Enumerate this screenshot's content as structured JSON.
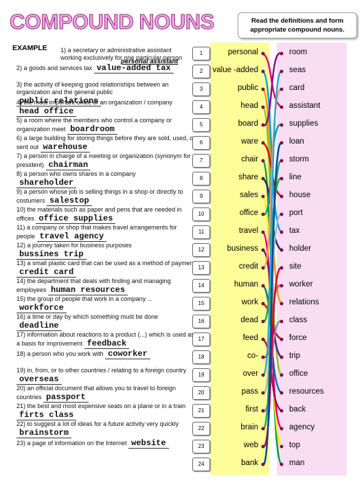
{
  "header": {
    "title": "COMPOUND NOUNS",
    "instruction": "Read the definitions and form appropriate compound nouns.",
    "example_label": "EXAMPLE"
  },
  "definitions": [
    {
      "number": "1)",
      "text": "a secretary or administrative assistant working exclusively for one particular person",
      "answer": "personal assistant"
    },
    {
      "number": "2)",
      "text": "a goods and services tax",
      "answer": "value-added tax"
    },
    {
      "number": "3)",
      "text": "the activity of keeping good relationships between an organization and the general public",
      "answer": "public relations"
    },
    {
      "number": "4)",
      "text": "the most important office of an organization / company",
      "answer": "head office"
    },
    {
      "number": "5)",
      "text": "a room where the members who control a company or organization meet",
      "answer": "boardroom"
    },
    {
      "number": "6)",
      "text": "a large building for storing things before they are sold, used, or sent out",
      "answer": "warehouse"
    },
    {
      "number": "7)",
      "text": "a person in charge of a meeting or organization (synonym for president)",
      "answer": "chairman"
    },
    {
      "number": "8)",
      "text": "a person who owns shares in a company",
      "answer": "shareholder"
    },
    {
      "number": "9)",
      "text": "a person whose job is selling things in a shop or directly to costumers",
      "answer": "salestop"
    },
    {
      "number": "10)",
      "text": "the materials such as paper and pens that are needed in offices",
      "answer": "office supplies"
    },
    {
      "number": "11)",
      "text": "a company or shop that makes travel arrangements for people",
      "answer": "travel agency"
    },
    {
      "number": "12)",
      "text": "a journey taken for business purposes",
      "answer": "bussines trip"
    },
    {
      "number": "13)",
      "text": "a small plastic card that can be used as a method of payment",
      "answer": "credit card"
    },
    {
      "number": "14)",
      "text": "the department that deals with finding and managing employees",
      "answer": "human resources"
    },
    {
      "number": "15)",
      "text": "the group of people that work in a company ...",
      "answer": "workforce"
    },
    {
      "number": "16)",
      "text": "a time or day by which something must be done",
      "answer": "deadline"
    },
    {
      "number": "17)",
      "text": "information about reactions to a product (...) which is used as a basis for improvement",
      "answer": "feedback"
    },
    {
      "number": "18)",
      "text": "a person who you work with",
      "answer": "coworker"
    },
    {
      "number": "19)",
      "text": "in, from, or to other countries / relating to a foreign country",
      "answer": "overseas"
    },
    {
      "number": "20)",
      "text": "an official document that allows you to travel to foreign countries",
      "answer": "passport"
    },
    {
      "number": "21)",
      "text": "the best and most expensive seats on a plane or in a train",
      "answer": "firts class"
    },
    {
      "number": "22)",
      "text": "to suggest a lot of ideas for a future activity very quickly",
      "answer": "brainstorm"
    },
    {
      "number": "23)",
      "text": "a page of information on the Internet",
      "answer": "website"
    }
  ],
  "row_numbers": [
    "1",
    "2",
    "3",
    "4",
    "5",
    "6",
    "7",
    "8",
    "9",
    "10",
    "11",
    "12",
    "13",
    "14",
    "15",
    "16",
    "17",
    "18",
    "19",
    "20",
    "21",
    "22",
    "23",
    "24"
  ],
  "left_words": [
    "personal",
    "value -added",
    "public",
    "head",
    "board",
    "ware",
    "chair",
    "share",
    "sales",
    "office",
    "travel",
    "business",
    "credit",
    "human",
    "work",
    "dead",
    "feed",
    "co-",
    "over",
    "pass",
    "first",
    "brain",
    "web",
    "bank"
  ],
  "right_words": [
    "room",
    "seas",
    "card",
    "assistant",
    "supplies",
    "loan",
    "storm",
    "line",
    "house",
    "port",
    "tax",
    "holder",
    "site",
    "worker",
    "relations",
    "class",
    "force",
    "trip",
    "office",
    "resources",
    "back",
    "agency",
    "top",
    "man"
  ]
}
